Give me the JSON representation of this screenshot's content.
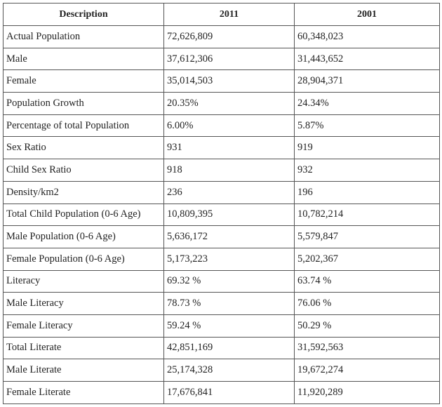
{
  "table": {
    "header": [
      "Description",
      "2011",
      "2001"
    ],
    "rows": [
      [
        "Actual Population",
        "72,626,809",
        "60,348,023"
      ],
      [
        "Male",
        "37,612,306",
        "31,443,652"
      ],
      [
        "Female",
        "35,014,503",
        "28,904,371"
      ],
      [
        "Population Growth",
        "20.35%",
        "24.34%"
      ],
      [
        "Percentage of total Population",
        "6.00%",
        "5.87%"
      ],
      [
        "Sex Ratio",
        "931",
        "919"
      ],
      [
        "Child Sex Ratio",
        "918",
        "932"
      ],
      [
        "Density/km2",
        "236",
        "196"
      ],
      [
        "Total Child Population (0-6 Age)",
        "10,809,395",
        "10,782,214"
      ],
      [
        "Male Population (0-6 Age)",
        "5,636,172",
        "5,579,847"
      ],
      [
        "Female Population (0-6 Age)",
        "5,173,223",
        "5,202,367"
      ],
      [
        "Literacy",
        "69.32 %",
        "63.74 %"
      ],
      [
        "Male Literacy",
        "78.73 %",
        "76.06 %"
      ],
      [
        "Female Literacy",
        "59.24 %",
        "50.29 %"
      ],
      [
        "Total Literate",
        "42,851,169",
        "31,592,563"
      ],
      [
        "Male Literate",
        "25,174,328",
        "19,672,274"
      ],
      [
        "Female Literate",
        "17,676,841",
        "11,920,289"
      ]
    ]
  }
}
